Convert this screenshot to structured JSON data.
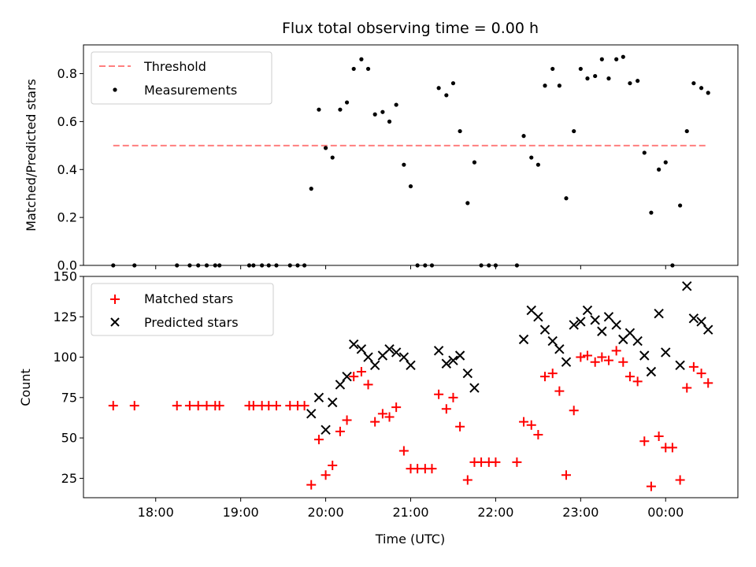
{
  "figure": {
    "title": "Flux total observing time = 0.00 h"
  },
  "chart_data": [
    {
      "type": "scatter",
      "ylabel": "Matched/Predicted stars",
      "ylim": [
        0,
        0.92
      ],
      "yticks": [
        0.0,
        0.2,
        0.4,
        0.6,
        0.8
      ],
      "ytick_labels": [
        "0.0",
        "0.2",
        "0.4",
        "0.6",
        "0.8"
      ],
      "legend_position": "top-left",
      "grid": false,
      "threshold": {
        "name": "Threshold",
        "value": 0.5,
        "x_range": [
          17.5,
          24.5
        ],
        "color": "#ff7f7f",
        "style": "dashed"
      },
      "series": [
        {
          "name": "Measurements",
          "marker": "dot",
          "color": "#000000",
          "x": [
            17.5,
            17.75,
            18.25,
            18.4,
            18.5,
            18.6,
            18.7,
            18.75,
            19.1,
            19.15,
            19.25,
            19.33,
            19.42,
            19.58,
            19.67,
            19.75,
            19.83,
            19.92,
            20.0,
            20.08,
            20.17,
            20.25,
            20.33,
            20.42,
            20.5,
            20.58,
            20.67,
            20.75,
            20.83,
            20.92,
            21.0,
            21.08,
            21.17,
            21.25,
            21.33,
            21.42,
            21.5,
            21.58,
            21.67,
            21.75,
            21.83,
            21.92,
            22.0,
            22.25,
            22.33,
            22.42,
            22.5,
            22.58,
            22.67,
            22.75,
            22.83,
            22.92,
            23.0,
            23.08,
            23.17,
            23.25,
            23.33,
            23.42,
            23.5,
            23.58,
            23.67,
            23.75,
            23.83,
            23.92,
            24.0,
            24.08,
            24.17,
            24.25,
            24.33,
            24.42,
            24.5
          ],
          "y": [
            0,
            0,
            0,
            0,
            0,
            0,
            0,
            0,
            0,
            0,
            0,
            0,
            0,
            0,
            0,
            0,
            0.32,
            0.65,
            0.49,
            0.45,
            0.65,
            0.68,
            0.82,
            0.86,
            0.82,
            0.63,
            0.64,
            0.6,
            0.67,
            0.42,
            0.33,
            0,
            0,
            0,
            0.74,
            0.71,
            0.76,
            0.56,
            0.26,
            0.43,
            0,
            0,
            0,
            0,
            0.54,
            0.45,
            0.42,
            0.75,
            0.82,
            0.75,
            0.28,
            0.56,
            0.82,
            0.78,
            0.79,
            0.86,
            0.78,
            0.86,
            0.87,
            0.76,
            0.77,
            0.47,
            0.22,
            0.4,
            0.43,
            0,
            0.25,
            0.56,
            0.76,
            0.74,
            0.72
          ]
        }
      ]
    },
    {
      "type": "scatter",
      "ylabel": "Count",
      "xlabel": "Time (UTC)",
      "ylim": [
        13,
        150
      ],
      "yticks": [
        25,
        50,
        75,
        100,
        125,
        150
      ],
      "ytick_labels": [
        "25",
        "50",
        "75",
        "100",
        "125",
        "150"
      ],
      "xlim": [
        17.15,
        24.85
      ],
      "xticks": [
        18,
        19,
        20,
        21,
        22,
        23,
        24
      ],
      "xtick_labels": [
        "18:00",
        "19:00",
        "20:00",
        "21:00",
        "22:00",
        "23:00",
        "00:00"
      ],
      "legend_position": "top-left",
      "grid": false,
      "series": [
        {
          "name": "Matched stars",
          "marker": "plus",
          "color": "#ff0000",
          "x": [
            17.5,
            17.75,
            18.25,
            18.4,
            18.5,
            18.6,
            18.7,
            18.75,
            19.1,
            19.15,
            19.25,
            19.33,
            19.42,
            19.58,
            19.67,
            19.75,
            19.83,
            19.92,
            20.0,
            20.08,
            20.17,
            20.25,
            20.33,
            20.42,
            20.5,
            20.58,
            20.67,
            20.75,
            20.83,
            20.92,
            21.0,
            21.08,
            21.17,
            21.25,
            21.33,
            21.42,
            21.5,
            21.58,
            21.67,
            21.75,
            21.83,
            21.92,
            22.0,
            22.25,
            22.33,
            22.42,
            22.5,
            22.58,
            22.67,
            22.75,
            22.83,
            22.92,
            23.0,
            23.08,
            23.17,
            23.25,
            23.33,
            23.42,
            23.5,
            23.58,
            23.67,
            23.75,
            23.83,
            23.92,
            24.0,
            24.08,
            24.17,
            24.25,
            24.33,
            24.42,
            24.5
          ],
          "y": [
            70,
            70,
            70,
            70,
            70,
            70,
            70,
            70,
            70,
            70,
            70,
            70,
            70,
            70,
            70,
            70,
            21,
            49,
            27,
            33,
            54,
            61,
            88,
            91,
            83,
            60,
            65,
            63,
            69,
            42,
            31,
            31,
            31,
            31,
            77,
            68,
            75,
            57,
            24,
            35,
            35,
            35,
            35,
            35,
            60,
            58,
            52,
            88,
            90,
            79,
            27,
            67,
            100,
            101,
            97,
            100,
            98,
            104,
            97,
            88,
            85,
            48,
            20,
            51,
            44,
            44,
            24,
            81,
            94,
            90,
            84
          ]
        },
        {
          "name": "Predicted stars",
          "marker": "x",
          "color": "#000000",
          "x": [
            19.83,
            19.92,
            20.0,
            20.08,
            20.17,
            20.25,
            20.33,
            20.42,
            20.5,
            20.58,
            20.67,
            20.75,
            20.83,
            20.92,
            21.0,
            21.33,
            21.42,
            21.5,
            21.58,
            21.67,
            21.75,
            22.33,
            22.42,
            22.5,
            22.58,
            22.67,
            22.75,
            22.83,
            22.92,
            23.0,
            23.08,
            23.17,
            23.25,
            23.33,
            23.42,
            23.5,
            23.58,
            23.67,
            23.75,
            23.83,
            23.92,
            24.0,
            24.17,
            24.25,
            24.33,
            24.42,
            24.5
          ],
          "y": [
            65,
            75,
            55,
            72,
            83,
            88,
            108,
            105,
            100,
            95,
            101,
            105,
            103,
            100,
            95,
            104,
            96,
            98,
            101,
            90,
            81,
            111,
            129,
            125,
            117,
            110,
            105,
            97,
            120,
            122,
            129,
            123,
            116,
            125,
            120,
            111,
            115,
            110,
            101,
            91,
            127,
            103,
            95,
            144,
            124,
            122,
            117
          ]
        }
      ]
    }
  ]
}
